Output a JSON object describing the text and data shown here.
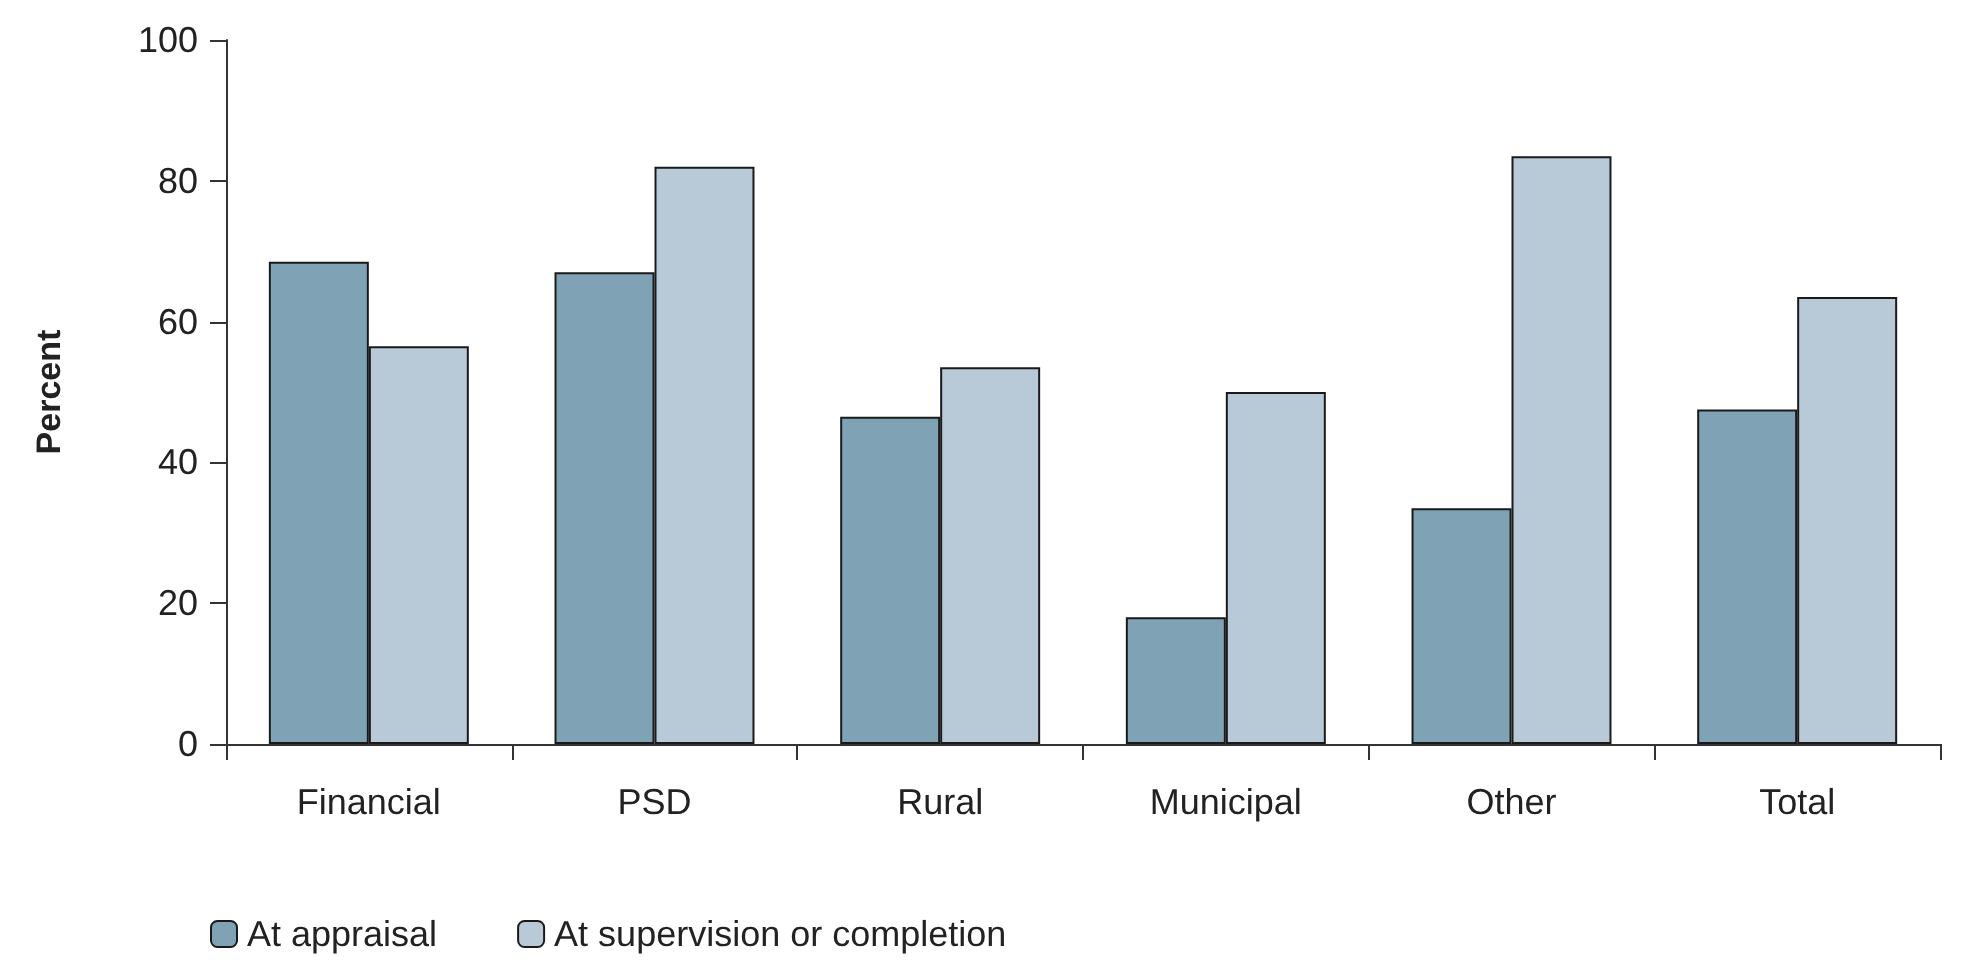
{
  "chart_data": {
    "type": "bar",
    "ylabel": "Percent",
    "categories": [
      "Financial",
      "PSD",
      "Rural",
      "Municipal",
      "Other",
      "Total"
    ],
    "series": [
      {
        "name": "At appraisal",
        "color": "#7fa3b5",
        "values": [
          68.5,
          67,
          46.5,
          18,
          33.5,
          47.5
        ]
      },
      {
        "name": "At supervision or completion",
        "color": "#b8cad8",
        "values": [
          56.5,
          82,
          53.5,
          50,
          83.5,
          63.5
        ]
      }
    ],
    "ylim": [
      0,
      100
    ],
    "yticks": [
      0,
      20,
      40,
      60,
      80,
      100
    ],
    "grid": false,
    "legend": "bottom left"
  }
}
